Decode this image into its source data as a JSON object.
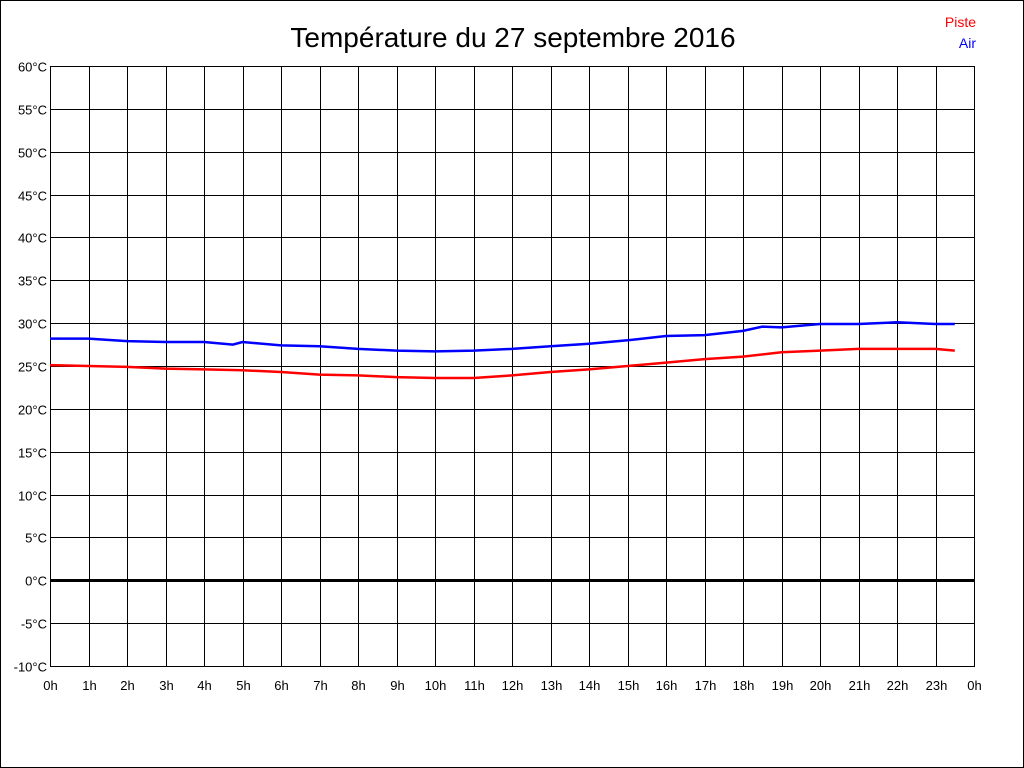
{
  "chart_data": {
    "type": "line",
    "title": "Température du 27 septembre 2016",
    "xlabel": "",
    "ylabel": "",
    "xlim": [
      0,
      24
    ],
    "ylim": [
      -10,
      60
    ],
    "grid": true,
    "legend_position": "top-right",
    "x_tick_labels": [
      "0h",
      "1h",
      "2h",
      "3h",
      "4h",
      "5h",
      "6h",
      "7h",
      "8h",
      "9h",
      "10h",
      "11h",
      "12h",
      "13h",
      "14h",
      "15h",
      "16h",
      "17h",
      "18h",
      "19h",
      "20h",
      "21h",
      "22h",
      "23h",
      "0h"
    ],
    "y_tick_labels": [
      "-10°C",
      "-5°C",
      "0°C",
      "5°C",
      "10°C",
      "15°C",
      "20°C",
      "25°C",
      "30°C",
      "35°C",
      "40°C",
      "45°C",
      "50°C",
      "55°C",
      "60°C"
    ],
    "y_tick_values": [
      -10,
      -5,
      0,
      5,
      10,
      15,
      20,
      25,
      30,
      35,
      40,
      45,
      50,
      55,
      60
    ],
    "series": [
      {
        "name": "Piste",
        "color": "#ff0000",
        "x": [
          0,
          1,
          2,
          3,
          4,
          5,
          6,
          7,
          8,
          9,
          10,
          11,
          12,
          13,
          14,
          15,
          16,
          17,
          18,
          19,
          20,
          21,
          22,
          23,
          23.5
        ],
        "y": [
          25.1,
          25.0,
          24.9,
          24.7,
          24.6,
          24.5,
          24.3,
          24.0,
          23.9,
          23.7,
          23.6,
          23.6,
          23.9,
          24.3,
          24.6,
          25.0,
          25.4,
          25.8,
          26.1,
          26.6,
          26.8,
          27.0,
          27.0,
          27.0,
          26.8
        ]
      },
      {
        "name": "Air",
        "color": "#0000ff",
        "x": [
          0,
          1,
          2,
          3,
          4,
          4.75,
          5,
          6,
          7,
          8,
          9,
          10,
          11,
          12,
          13,
          14,
          15,
          16,
          17,
          18,
          18.5,
          19,
          20,
          21,
          22,
          23,
          23.5
        ],
        "y": [
          28.2,
          28.2,
          27.9,
          27.8,
          27.8,
          27.5,
          27.8,
          27.4,
          27.3,
          27.0,
          26.8,
          26.7,
          26.8,
          27.0,
          27.3,
          27.6,
          28.0,
          28.5,
          28.6,
          29.1,
          29.6,
          29.5,
          29.9,
          29.9,
          30.1,
          29.9,
          29.9
        ]
      }
    ]
  }
}
